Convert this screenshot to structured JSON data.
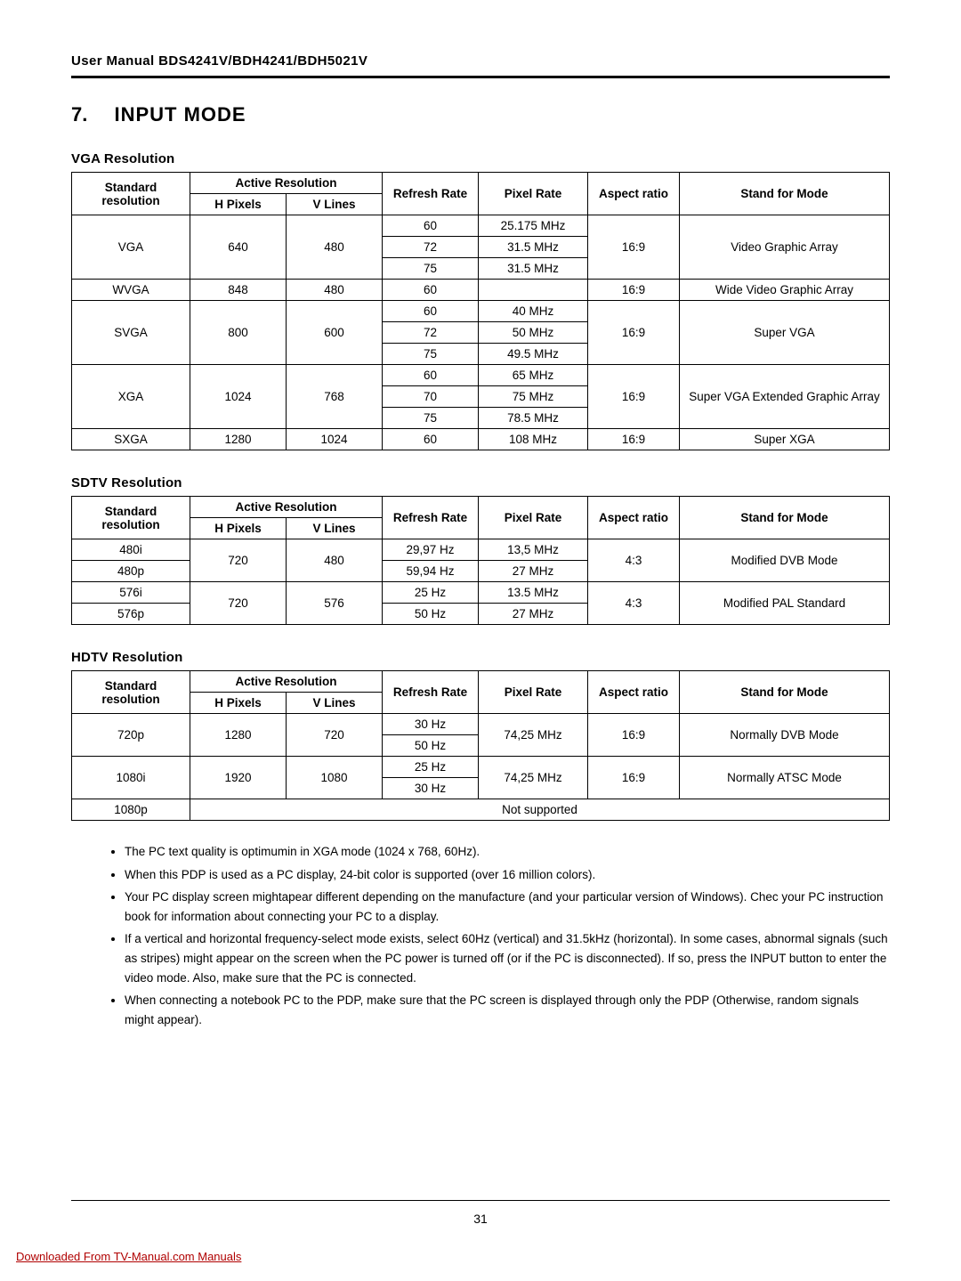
{
  "header": "User Manual BDS4241V/BDH4241/BDH5021V",
  "section_number": "7.",
  "section_title": "INPUT MODE",
  "headers": {
    "std": "Standard resolution",
    "ar": "Active Resolution",
    "hp": "H Pixels",
    "vl": "V Lines",
    "rr": "Refresh Rate",
    "pr": "Pixel Rate",
    "asp": "Aspect ratio",
    "mode": "Stand for Mode"
  },
  "vga": {
    "title": "VGA Resolution",
    "rows": {
      "vga_std": "VGA",
      "vga_hp": "640",
      "vga_vl": "480",
      "vga_r1": "60",
      "vga_p1": "25.175 MHz",
      "vga_r2": "72",
      "vga_p2": "31.5 MHz",
      "vga_r3": "75",
      "vga_p3": "31.5 MHz",
      "vga_asp": "16:9",
      "vga_mode": "Video Graphic Array",
      "wvga_std": "WVGA",
      "wvga_hp": "848",
      "wvga_vl": "480",
      "wvga_r": "60",
      "wvga_p": "",
      "wvga_asp": "16:9",
      "wvga_mode": "Wide Video Graphic Array",
      "svga_std": "SVGA",
      "svga_hp": "800",
      "svga_vl": "600",
      "svga_r1": "60",
      "svga_p1": "40 MHz",
      "svga_r2": "72",
      "svga_p2": "50 MHz",
      "svga_r3": "75",
      "svga_p3": "49.5 MHz",
      "svga_asp": "16:9",
      "svga_mode": "Super VGA",
      "xga_std": "XGA",
      "xga_hp": "1024",
      "xga_vl": "768",
      "xga_r1": "60",
      "xga_p1": "65 MHz",
      "xga_r2": "70",
      "xga_p2": "75 MHz",
      "xga_r3": "75",
      "xga_p3": "78.5 MHz",
      "xga_asp": "16:9",
      "xga_mode": "Super VGA Extended Graphic Array",
      "sxga_std": "SXGA",
      "sxga_hp": "1280",
      "sxga_vl": "1024",
      "sxga_r": "60",
      "sxga_p": "108 MHz",
      "sxga_asp": "16:9",
      "sxga_mode": "Super XGA"
    }
  },
  "sdtv": {
    "title": "SDTV Resolution",
    "rows": {
      "r1_std": "480i",
      "r1_r": "29,97 Hz",
      "r1_p": "13,5 MHz",
      "r2_std": "480p",
      "r2_r": "59,94 Hz",
      "r2_p": "27 MHz",
      "g1_hp": "720",
      "g1_vl": "480",
      "g1_asp": "4:3",
      "g1_mode": "Modified DVB Mode",
      "r3_std": "576i",
      "r3_r": "25 Hz",
      "r3_p": "13.5 MHz",
      "r4_std": "576p",
      "r4_r": "50 Hz",
      "r4_p": "27 MHz",
      "g2_hp": "720",
      "g2_vl": "576",
      "g2_asp": "4:3",
      "g2_mode": "Modified PAL Standard"
    }
  },
  "hdtv": {
    "title": "HDTV Resolution",
    "rows": {
      "r1_std": "720p",
      "r1_hp": "1280",
      "r1_vl": "720",
      "r1_rr1": "30 Hz",
      "r1_rr2": "50 Hz",
      "r1_p": "74,25 MHz",
      "r1_asp": "16:9",
      "r1_mode": "Normally DVB Mode",
      "r2_std": "1080i",
      "r2_hp": "1920",
      "r2_vl": "1080",
      "r2_rr1": "25 Hz",
      "r2_rr2": "30 Hz",
      "r2_p": "74,25 MHz",
      "r2_asp": "16:9",
      "r2_mode": "Normally ATSC Mode",
      "r3_std": "1080p",
      "r3_ns": "Not supported"
    }
  },
  "notes": {
    "n1": "The PC text quality is optimumin in XGA mode (1024 x 768, 60Hz).",
    "n2": "When this PDP is used as a PC display, 24-bit color is supported (over 16 million colors).",
    "n3": "Your PC display screen mightapear different depending on the manufacture (and your particular version of Windows).  Chec your PC instruction book for information about connecting your PC to a display.",
    "n4": "If a vertical and horizontal frequency-select mode exists, select 60Hz (vertical) and 31.5kHz (horizontal).  In some cases, abnormal signals (such as stripes) might appear on the screen when the PC power is turned off (or if the PC is disconnected). If so, press the INPUT button to enter the video mode. Also, make sure that the PC is connected.",
    "n5": "When connecting a notebook PC to the PDP, make sure that the PC screen is displayed through only the PDP (Otherwise, random signals might appear)."
  },
  "page_number": "31",
  "download_text": "Downloaded From TV-Manual.com Manuals"
}
